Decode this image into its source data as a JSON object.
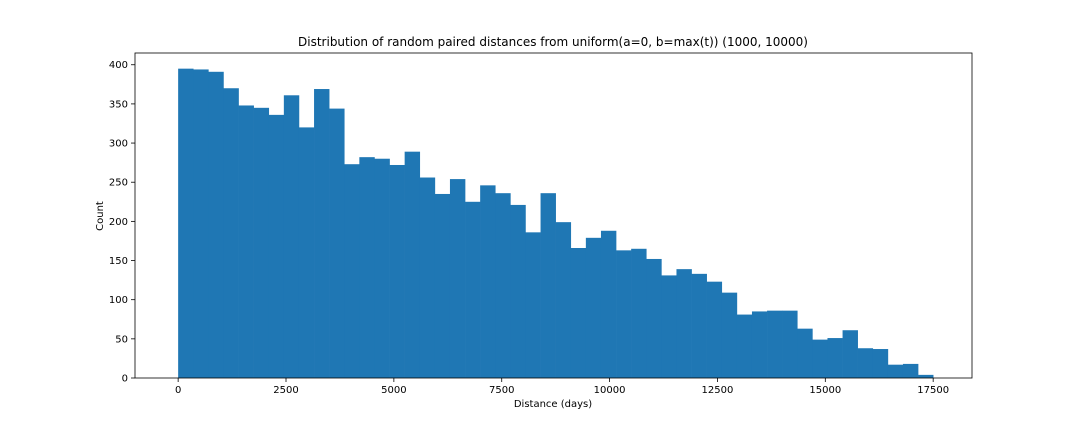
{
  "chart_data": {
    "type": "bar",
    "title": "Distribution of random paired distances from uniform(a=0, b=max(t)) (1000, 10000)",
    "xlabel": "Distance (days)",
    "ylabel": "Count",
    "xlim": [
      -1000,
      18400
    ],
    "ylim": [
      0,
      415
    ],
    "xticks": [
      0,
      2500,
      5000,
      7500,
      10000,
      12500,
      15000,
      17500
    ],
    "yticks": [
      0,
      50,
      100,
      150,
      200,
      250,
      300,
      350,
      400
    ],
    "color": "#1f77b4",
    "bin_width": 350,
    "bin_start": 0,
    "values": [
      395,
      394,
      391,
      370,
      348,
      345,
      336,
      361,
      320,
      369,
      344,
      273,
      282,
      280,
      272,
      289,
      256,
      235,
      254,
      225,
      246,
      236,
      221,
      186,
      236,
      199,
      166,
      179,
      188,
      163,
      165,
      152,
      131,
      139,
      133,
      123,
      109,
      81,
      85,
      86,
      86,
      63,
      49,
      51,
      61,
      38,
      37,
      17,
      18,
      4
    ]
  }
}
